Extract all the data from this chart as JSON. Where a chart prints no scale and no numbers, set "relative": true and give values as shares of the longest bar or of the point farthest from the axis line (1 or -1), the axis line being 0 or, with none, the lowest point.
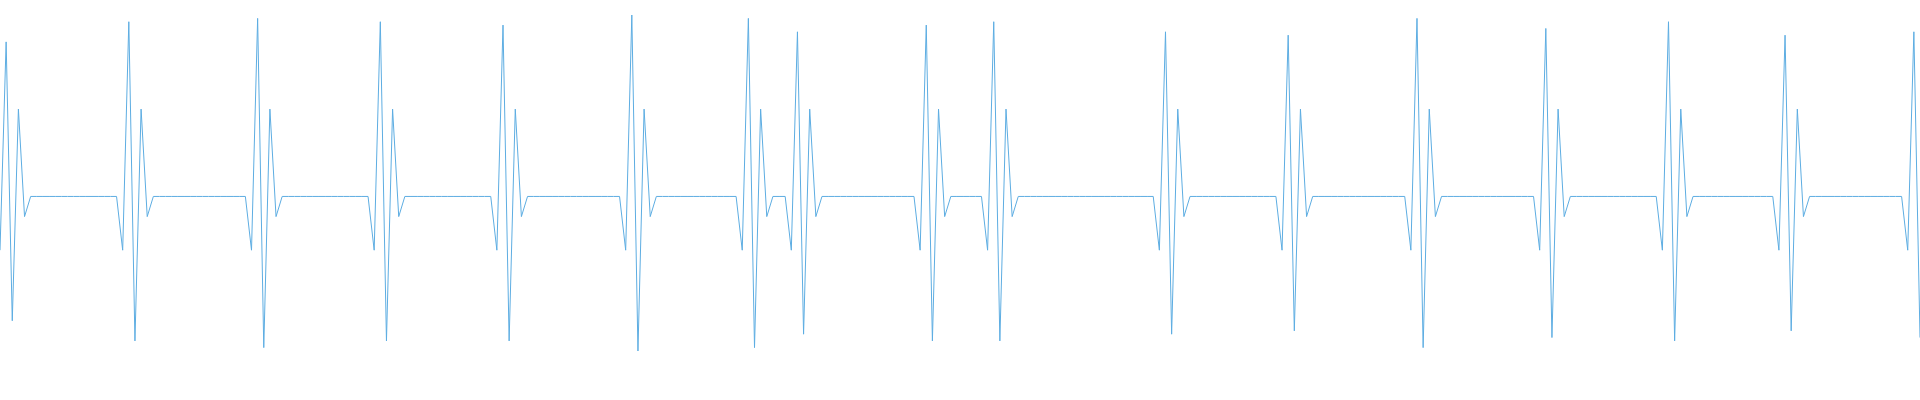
{
  "chart_data": {
    "type": "line",
    "relative": true,
    "marker": "none",
    "line_style": "solid",
    "legend": false,
    "categories": [
      null,
      null,
      null,
      null,
      null,
      null,
      null,
      null,
      null,
      null,
      null,
      null,
      null,
      null,
      null,
      null,
      null,
      null,
      null,
      null,
      null,
      null,
      null,
      null,
      null,
      null,
      null,
      null,
      null,
      null,
      null,
      null,
      null,
      null,
      null,
      null,
      null,
      null,
      null,
      null,
      null,
      null,
      null,
      null,
      null,
      null,
      null,
      null,
      null,
      null,
      null,
      null,
      null,
      null,
      null,
      null,
      null,
      null,
      null,
      null,
      null,
      null,
      null,
      null,
      null,
      null,
      null,
      null,
      null,
      null,
      null,
      null,
      null,
      null,
      null,
      null,
      null,
      null,
      null,
      null,
      null,
      null,
      null,
      null,
      null,
      null,
      null,
      null,
      null,
      null,
      null,
      null,
      null,
      null,
      null,
      null,
      null,
      null,
      null,
      null,
      null,
      null,
      null,
      null,
      null,
      null,
      null,
      null,
      null,
      null,
      null,
      null,
      null,
      null,
      null,
      null,
      null,
      null,
      null,
      null,
      null,
      null,
      null,
      null,
      null,
      null,
      null,
      null,
      null,
      null,
      null,
      null,
      null,
      null,
      null,
      null,
      null,
      null,
      null,
      null,
      null,
      null,
      null,
      null,
      null,
      null,
      null,
      null,
      null,
      null,
      null,
      null,
      null,
      null,
      null,
      null,
      null,
      null,
      null,
      null,
      null,
      null,
      null,
      null,
      null,
      null,
      null,
      null,
      null,
      null,
      null,
      null,
      null,
      null,
      null,
      null,
      null,
      null,
      null,
      null,
      null,
      null,
      null,
      null,
      null,
      null,
      null,
      null,
      null,
      null,
      null,
      null,
      null,
      null,
      null,
      null,
      null,
      null,
      null,
      null,
      null,
      null,
      null,
      null,
      null,
      null,
      null,
      null,
      null,
      null,
      null,
      null,
      null,
      null,
      null,
      null,
      null,
      null,
      null,
      null,
      null,
      null,
      null,
      null,
      null,
      null,
      null,
      null,
      null,
      null,
      null,
      null,
      null,
      null,
      null,
      null,
      null,
      null,
      null,
      null,
      null,
      null,
      null,
      null,
      null,
      null,
      null,
      null,
      null,
      null,
      null,
      null,
      null,
      null,
      null,
      null,
      null,
      null,
      null,
      null,
      null,
      null,
      null,
      null,
      null,
      null,
      null,
      null,
      null,
      null,
      null,
      null,
      null,
      null,
      null,
      null,
      null,
      null,
      null,
      null,
      null,
      null,
      null,
      null,
      null,
      null,
      null,
      null,
      null,
      null,
      null,
      null,
      null,
      null,
      null,
      null,
      null,
      null,
      null,
      null,
      null,
      null,
      null,
      null,
      null,
      null,
      null,
      null,
      null,
      null,
      null,
      null,
      null,
      null
    ],
    "series": [
      {
        "color": "#5dade2",
        "values": [
          0.3,
          0.92,
          0.09,
          0.72,
          0.4,
          0.46,
          0.46,
          0.46,
          0.46,
          0.46,
          0.46,
          0.46,
          0.46,
          0.46,
          0.46,
          0.46,
          0.46,
          0.46,
          0.46,
          0.46,
          0.3,
          0.98,
          0.03,
          0.72,
          0.4,
          0.46,
          0.46,
          0.46,
          0.46,
          0.46,
          0.46,
          0.46,
          0.46,
          0.46,
          0.46,
          0.46,
          0.46,
          0.46,
          0.46,
          0.46,
          0.46,
          0.3,
          0.99,
          0.01,
          0.72,
          0.4,
          0.46,
          0.46,
          0.46,
          0.46,
          0.46,
          0.46,
          0.46,
          0.46,
          0.46,
          0.46,
          0.46,
          0.46,
          0.46,
          0.46,
          0.46,
          0.3,
          0.98,
          0.03,
          0.72,
          0.4,
          0.46,
          0.46,
          0.46,
          0.46,
          0.46,
          0.46,
          0.46,
          0.46,
          0.46,
          0.46,
          0.46,
          0.46,
          0.46,
          0.46,
          0.46,
          0.3,
          0.97,
          0.03,
          0.72,
          0.4,
          0.46,
          0.46,
          0.46,
          0.46,
          0.46,
          0.46,
          0.46,
          0.46,
          0.46,
          0.46,
          0.46,
          0.46,
          0.46,
          0.46,
          0.46,
          0.46,
          0.3,
          1,
          0,
          0.72,
          0.4,
          0.46,
          0.46,
          0.46,
          0.46,
          0.46,
          0.46,
          0.46,
          0.46,
          0.46,
          0.46,
          0.46,
          0.46,
          0.46,
          0.46,
          0.3,
          0.99,
          0.01,
          0.72,
          0.4,
          0.46,
          0.46,
          0.46,
          0.3,
          0.95,
          0.05,
          0.72,
          0.4,
          0.46,
          0.46,
          0.46,
          0.46,
          0.46,
          0.46,
          0.46,
          0.46,
          0.46,
          0.46,
          0.46,
          0.46,
          0.46,
          0.46,
          0.46,
          0.46,
          0.3,
          0.97,
          0.03,
          0.72,
          0.4,
          0.46,
          0.46,
          0.46,
          0.46,
          0.46,
          0.46,
          0.3,
          0.98,
          0.03,
          0.72,
          0.4,
          0.46,
          0.46,
          0.46,
          0.46,
          0.46,
          0.46,
          0.46,
          0.46,
          0.46,
          0.46,
          0.46,
          0.46,
          0.46,
          0.46,
          0.46,
          0.46,
          0.46,
          0.46,
          0.46,
          0.46,
          0.46,
          0.46,
          0.46,
          0.3,
          0.95,
          0.05,
          0.72,
          0.4,
          0.46,
          0.46,
          0.46,
          0.46,
          0.46,
          0.46,
          0.46,
          0.46,
          0.46,
          0.46,
          0.46,
          0.46,
          0.46,
          0.46,
          0.46,
          0.3,
          0.94,
          0.06,
          0.72,
          0.4,
          0.46,
          0.46,
          0.46,
          0.46,
          0.46,
          0.46,
          0.46,
          0.46,
          0.46,
          0.46,
          0.46,
          0.46,
          0.46,
          0.46,
          0.46,
          0.46,
          0.3,
          0.99,
          0.01,
          0.72,
          0.4,
          0.46,
          0.46,
          0.46,
          0.46,
          0.46,
          0.46,
          0.46,
          0.46,
          0.46,
          0.46,
          0.46,
          0.46,
          0.46,
          0.46,
          0.46,
          0.46,
          0.3,
          0.96,
          0.04,
          0.72,
          0.4,
          0.46,
          0.46,
          0.46,
          0.46,
          0.46,
          0.46,
          0.46,
          0.46,
          0.46,
          0.46,
          0.46,
          0.46,
          0.46,
          0.46,
          0.46,
          0.3,
          0.98,
          0.03,
          0.72,
          0.4,
          0.46,
          0.46,
          0.46,
          0.46,
          0.46,
          0.46,
          0.46,
          0.46,
          0.46,
          0.46,
          0.46,
          0.46,
          0.46,
          0.46,
          0.3,
          0.94,
          0.06,
          0.72,
          0.4,
          0.46,
          0.46,
          0.46,
          0.46,
          0.46,
          0.46,
          0.46,
          0.46,
          0.46,
          0.46,
          0.46,
          0.46,
          0.46,
          0.46,
          0.46,
          0.46,
          0.3,
          0.95,
          0.04
        ]
      }
    ]
  }
}
